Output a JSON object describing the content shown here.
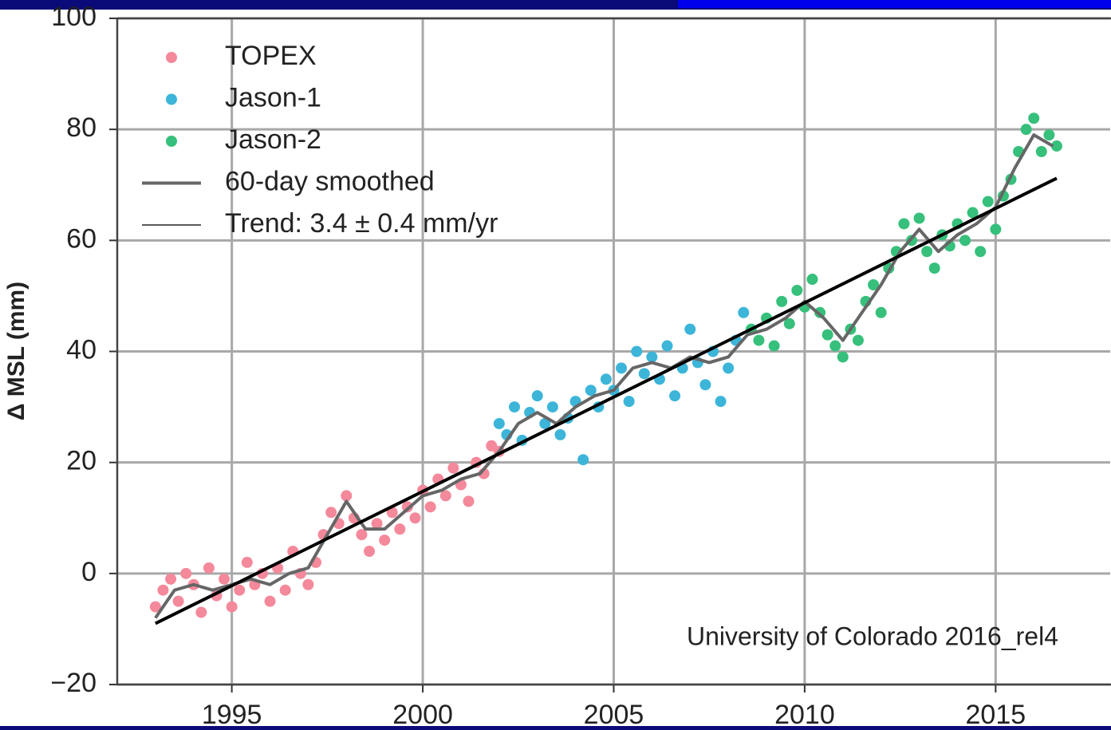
{
  "chart_data": {
    "type": "scatter",
    "y_label": "Δ MSL (mm)",
    "annotation": "University of Colorado 2016_rel4",
    "xlim": [
      1992,
      2018
    ],
    "ylim": [
      -20,
      100
    ],
    "xticks": [
      1995,
      2000,
      2005,
      2010,
      2015
    ],
    "yticks": [
      {
        "value": -20,
        "label": "−20"
      },
      0,
      20,
      40,
      60,
      80,
      100
    ],
    "grid": true,
    "legend": "upper left",
    "series": [
      {
        "name": "TOPEX",
        "style": "scatter",
        "color": "#f4899b",
        "x": [
          1993.0,
          1993.2,
          1993.4,
          1993.6,
          1993.8,
          1994.0,
          1994.2,
          1994.4,
          1994.6,
          1994.8,
          1995.0,
          1995.2,
          1995.4,
          1995.6,
          1995.8,
          1996.0,
          1996.2,
          1996.4,
          1996.6,
          1996.8,
          1997.0,
          1997.2,
          1997.4,
          1997.6,
          1997.8,
          1998.0,
          1998.2,
          1998.4,
          1998.6,
          1998.8,
          1999.0,
          1999.2,
          1999.4,
          1999.6,
          1999.8,
          2000.0,
          2000.2,
          2000.4,
          2000.6,
          2000.8,
          2001.0,
          2001.2,
          2001.4,
          2001.6,
          2001.8,
          2002.0
        ],
        "values": [
          -6,
          -3,
          -1,
          -5,
          0,
          -2,
          -7,
          1,
          -4,
          -1,
          -6,
          -3,
          2,
          -2,
          0,
          -5,
          1,
          -3,
          4,
          0,
          -2,
          2,
          7,
          11,
          9,
          14,
          10,
          7,
          4,
          9,
          6,
          11,
          8,
          12,
          10,
          15,
          12,
          17,
          14,
          19,
          16,
          13,
          20,
          18,
          23,
          22
        ]
      },
      {
        "name": "Jason-1",
        "style": "scatter",
        "color": "#3cb5d9",
        "x": [
          2002.0,
          2002.2,
          2002.4,
          2002.6,
          2002.8,
          2003.0,
          2003.2,
          2003.4,
          2003.6,
          2003.8,
          2004.0,
          2004.2,
          2004.4,
          2004.6,
          2004.8,
          2005.0,
          2005.2,
          2005.4,
          2005.6,
          2005.8,
          2006.0,
          2006.2,
          2006.4,
          2006.6,
          2006.8,
          2007.0,
          2007.2,
          2007.4,
          2007.6,
          2007.8,
          2008.0,
          2008.2,
          2008.4
        ],
        "values": [
          27,
          25,
          30,
          24,
          29,
          32,
          27,
          30,
          25,
          28,
          31,
          20.5,
          33,
          30,
          35,
          33,
          37,
          31,
          40,
          36,
          39,
          35,
          41,
          32,
          37,
          44,
          38,
          34,
          40,
          31,
          37,
          42,
          47
        ]
      },
      {
        "name": "Jason-2",
        "style": "scatter",
        "color": "#36c07b",
        "x": [
          2008.6,
          2008.8,
          2009.0,
          2009.2,
          2009.4,
          2009.6,
          2009.8,
          2010.0,
          2010.2,
          2010.4,
          2010.6,
          2010.8,
          2011.0,
          2011.2,
          2011.4,
          2011.6,
          2011.8,
          2012.0,
          2012.2,
          2012.4,
          2012.6,
          2012.8,
          2013.0,
          2013.2,
          2013.4,
          2013.6,
          2013.8,
          2014.0,
          2014.2,
          2014.4,
          2014.6,
          2014.8,
          2015.0,
          2015.2,
          2015.4,
          2015.6,
          2015.8,
          2016.0,
          2016.2,
          2016.4,
          2016.6
        ],
        "values": [
          44,
          42,
          46,
          41,
          49,
          45,
          51,
          48,
          53,
          47,
          43,
          41,
          39,
          44,
          42,
          49,
          52,
          47,
          55,
          58,
          63,
          60,
          64,
          58,
          55,
          61,
          59,
          63,
          60,
          65,
          58,
          67,
          62,
          68,
          71,
          76,
          80,
          82,
          76,
          79,
          77
        ]
      },
      {
        "name": "60-day smoothed",
        "style": "line",
        "color": "#666666",
        "line_width": 4,
        "x": [
          1993.0,
          1993.5,
          1994.0,
          1994.5,
          1995.0,
          1995.5,
          1996.0,
          1996.5,
          1997.0,
          1997.5,
          1998.0,
          1998.5,
          1999.0,
          1999.5,
          2000.0,
          2000.5,
          2001.0,
          2001.5,
          2002.0,
          2002.5,
          2003.0,
          2003.5,
          2004.0,
          2004.5,
          2005.0,
          2005.5,
          2006.0,
          2006.5,
          2007.0,
          2007.5,
          2008.0,
          2008.5,
          2009.0,
          2009.5,
          2010.0,
          2010.5,
          2011.0,
          2011.5,
          2012.0,
          2012.5,
          2013.0,
          2013.5,
          2014.0,
          2014.5,
          2015.0,
          2015.5,
          2016.0,
          2016.5
        ],
        "values": [
          -8,
          -3,
          -2,
          -3,
          -2,
          -1,
          -2,
          0,
          1,
          7,
          13,
          8,
          8,
          11,
          14,
          15,
          17,
          18,
          22,
          27,
          29,
          27,
          30,
          32,
          33,
          37,
          38,
          37,
          39,
          38,
          39,
          43,
          44,
          46,
          49,
          46,
          42,
          47,
          52,
          58,
          62,
          58,
          61,
          63,
          66,
          73,
          79,
          77
        ]
      },
      {
        "name": "Trend: 3.4 ± 0.4 mm/yr",
        "style": "line",
        "color": "#000000",
        "line_width": 4,
        "x": [
          1993.0,
          2016.6
        ],
        "values": [
          -9,
          71.2
        ]
      }
    ]
  }
}
